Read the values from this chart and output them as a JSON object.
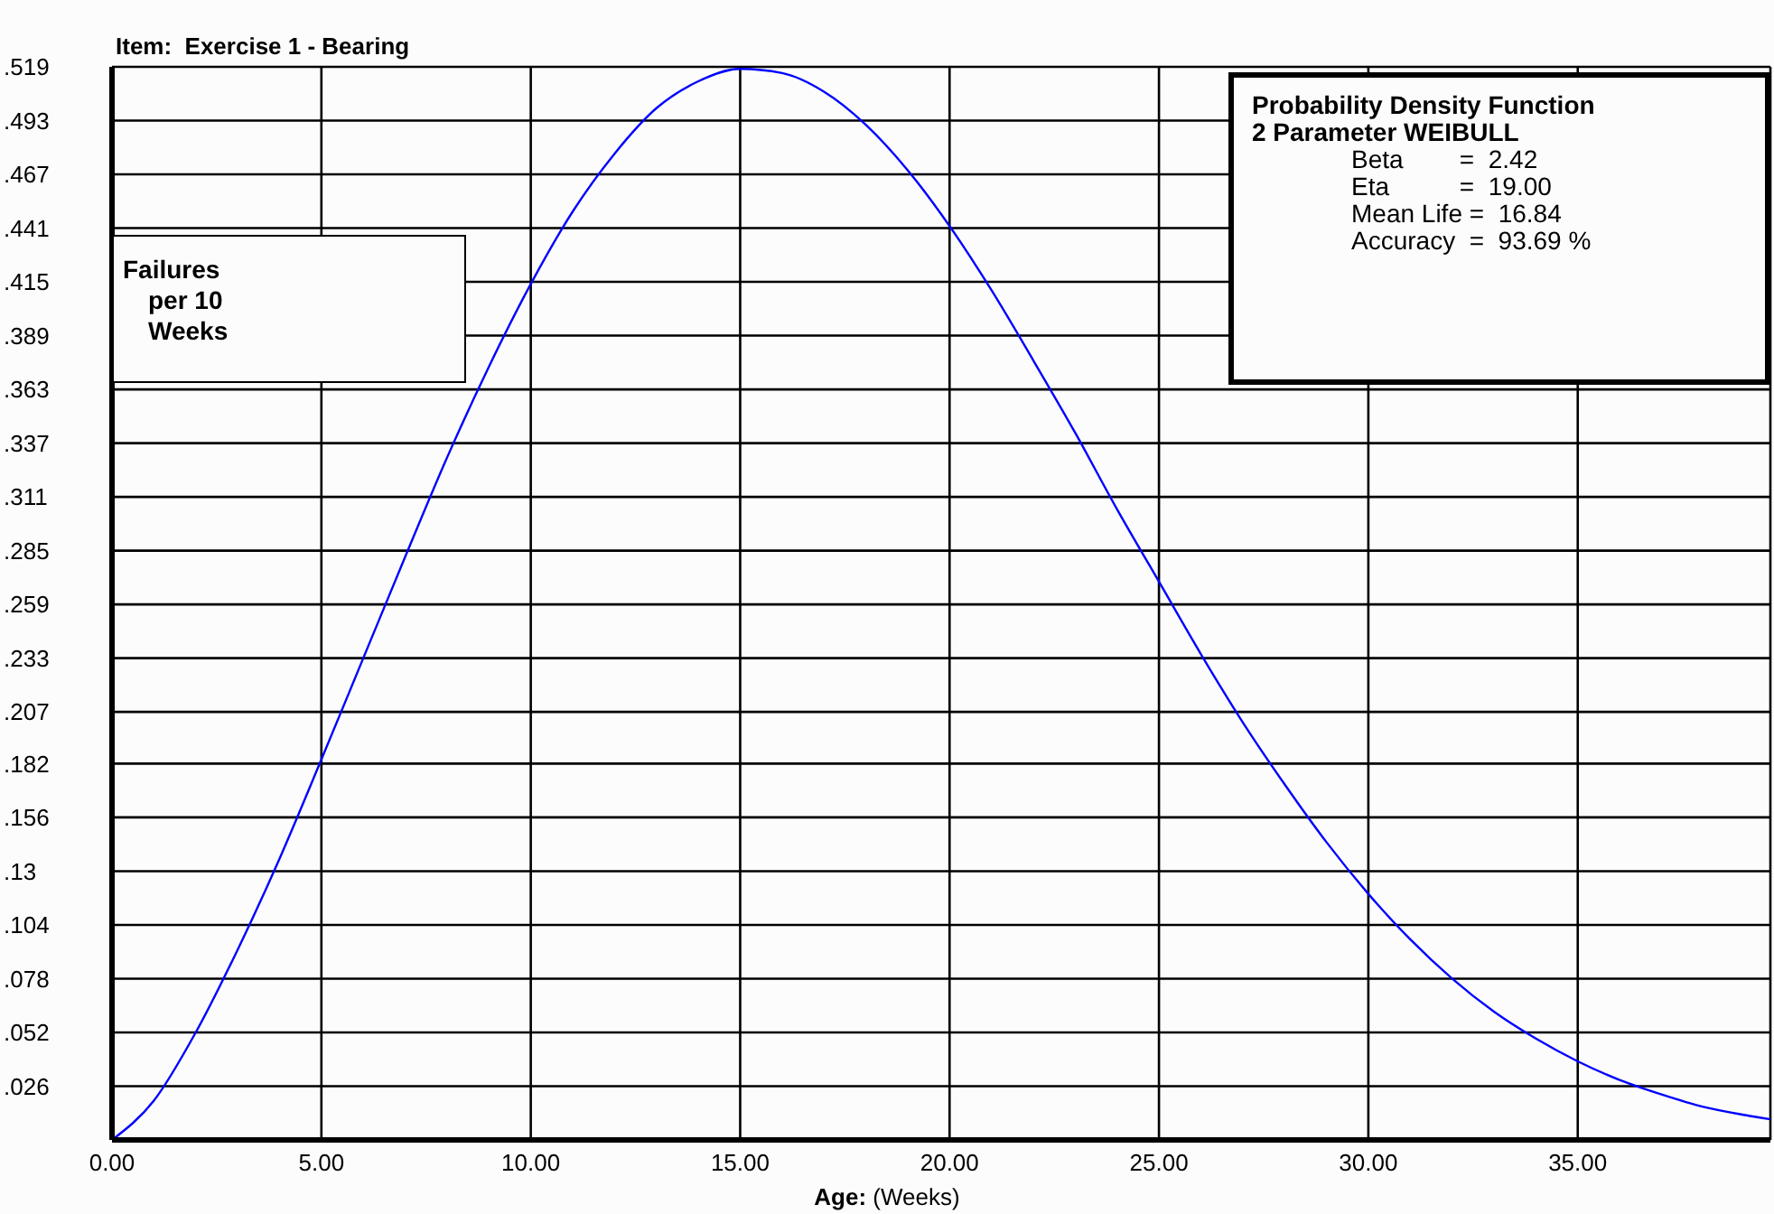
{
  "chart_data": {
    "type": "line",
    "title": "Item:  Exercise 1 - Bearing",
    "xlabel": "Age: (Weeks)",
    "ylabel": "Failures per 10 Weeks",
    "annotations": [
      "Probability Density Function",
      "2 Parameter WEIBULL",
      "Beta        =  2.42",
      "Eta          =  19.00",
      "Mean Life =  16.84",
      "Accuracy  =  93.69 %"
    ],
    "x": [
      0,
      1,
      2,
      3,
      4,
      5,
      6,
      7,
      8,
      9,
      10,
      11,
      12,
      13,
      14,
      15,
      16,
      17,
      18,
      19,
      20,
      21,
      22,
      23,
      24,
      25,
      26,
      27,
      28,
      29,
      30,
      31,
      32,
      33,
      34,
      35,
      36,
      37,
      38,
      39,
      39.6
    ],
    "series": [
      {
        "color": "#0000ff",
        "values": [
          0,
          0.019,
          0.052,
          0.092,
          0.136,
          0.184,
          0.233,
          0.282,
          0.33,
          0.374,
          0.414,
          0.449,
          0.477,
          0.499,
          0.512,
          0.518,
          0.516,
          0.507,
          0.491,
          0.469,
          0.442,
          0.411,
          0.377,
          0.342,
          0.305,
          0.27,
          0.235,
          0.202,
          0.172,
          0.144,
          0.119,
          0.097,
          0.078,
          0.062,
          0.049,
          0.038,
          0.029,
          0.022,
          0.016,
          0.012,
          0.01
        ]
      }
    ],
    "xlim": [
      0,
      39.6
    ],
    "xticks": [
      {
        "value": 0,
        "label": "0.00"
      },
      {
        "value": 5,
        "label": "5.00"
      },
      {
        "value": 10,
        "label": "10.00"
      },
      {
        "value": 15,
        "label": "15.00"
      },
      {
        "value": 20,
        "label": "20.00"
      },
      {
        "value": 25,
        "label": "25.00"
      },
      {
        "value": 30,
        "label": "30.00"
      },
      {
        "value": 35,
        "label": "35.00"
      }
    ],
    "ylim": [
      0,
      0.519
    ],
    "yticks": [
      {
        "value": 0,
        "label": null
      },
      {
        "value": 0.026,
        "label": ".026"
      },
      {
        "value": 0.052,
        "label": ".052"
      },
      {
        "value": 0.078,
        "label": ".078"
      },
      {
        "value": 0.104,
        "label": ".104"
      },
      {
        "value": 0.13,
        "label": ".13"
      },
      {
        "value": 0.156,
        "label": ".156"
      },
      {
        "value": 0.182,
        "label": ".182"
      },
      {
        "value": 0.207,
        "label": ".207"
      },
      {
        "value": 0.233,
        "label": ".233"
      },
      {
        "value": 0.259,
        "label": ".259"
      },
      {
        "value": 0.285,
        "label": ".285"
      },
      {
        "value": 0.311,
        "label": ".311"
      },
      {
        "value": 0.337,
        "label": ".337"
      },
      {
        "value": 0.363,
        "label": ".363"
      },
      {
        "value": 0.389,
        "label": ".389"
      },
      {
        "value": 0.415,
        "label": ".415"
      },
      {
        "value": 0.441,
        "label": ".441"
      },
      {
        "value": 0.467,
        "label": ".467"
      },
      {
        "value": 0.493,
        "label": ".493"
      },
      {
        "value": 0.519,
        "label": ".519"
      }
    ],
    "grid": true,
    "legend": false,
    "marker": "none",
    "line_style": "solid"
  }
}
